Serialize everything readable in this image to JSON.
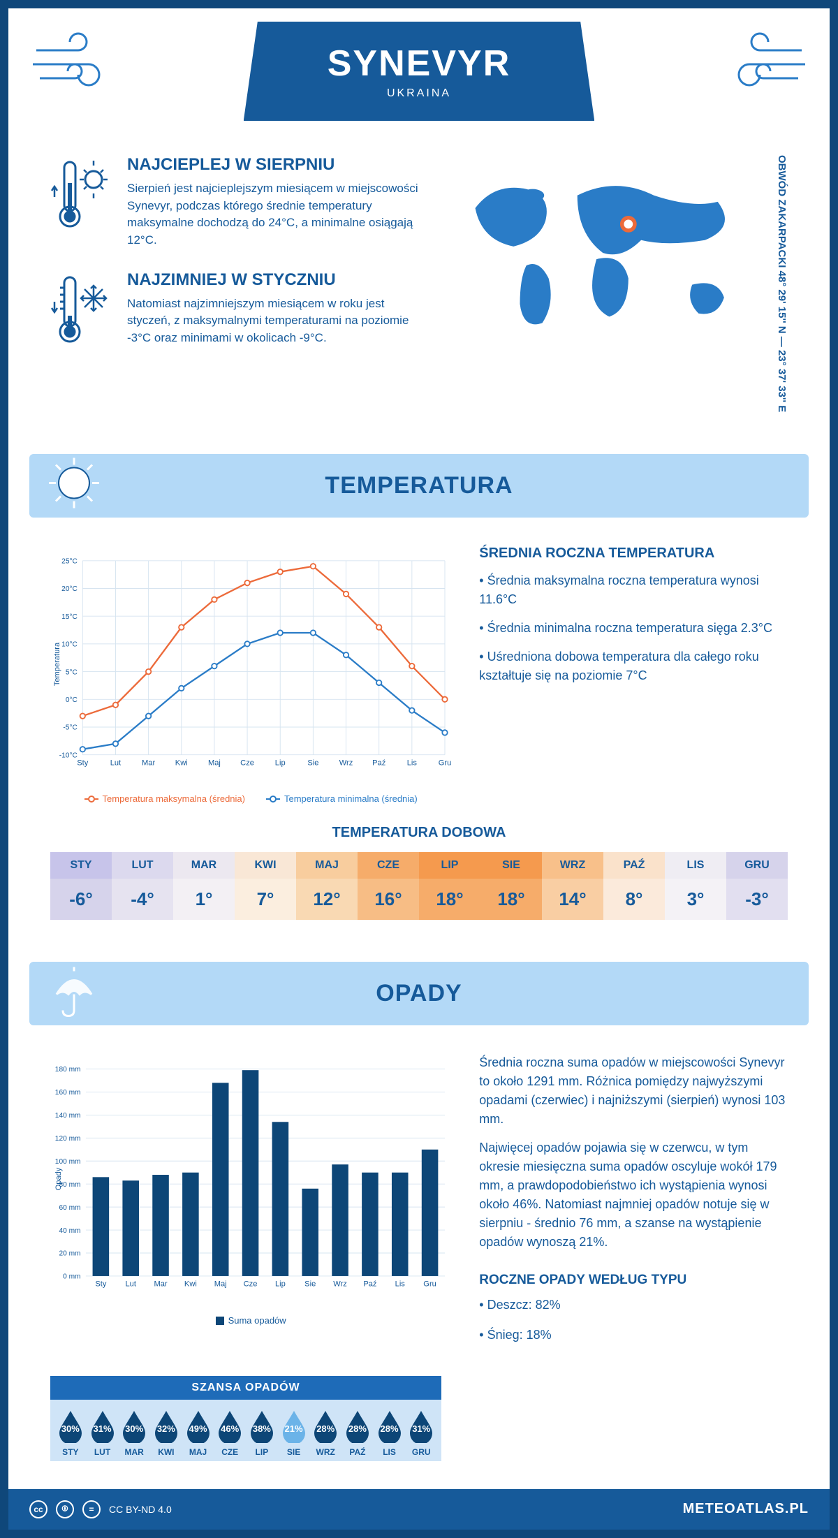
{
  "colors": {
    "primary": "#165a9a",
    "lightBlue": "#b3d9f7",
    "chartBlue": "#2a7cc7",
    "chartOrange": "#ec6a3a",
    "gridColor": "#d6e4f0",
    "dropDark": "#0d4677",
    "dropLight": "#6bb3e8"
  },
  "header": {
    "title": "SYNEVYR",
    "country": "UKRAINA"
  },
  "coords": "OBWÓD ZAKARPACKI     48° 29' 15'' N — 23° 37' 33'' E",
  "warm": {
    "title": "NAJCIEPLEJ W SIERPNIU",
    "text": "Sierpień jest najcieplejszym miesiącem w miejscowości Synevyr, podczas którego średnie temperatury maksymalne dochodzą do 24°C, a minimalne osiągają 12°C."
  },
  "cold": {
    "title": "NAJZIMNIEJ W STYCZNIU",
    "text": "Natomiast najzimniejszym miesiącem w roku jest styczeń, z maksymalnymi temperaturami na poziomie -3°C oraz minimami w okolicach -9°C."
  },
  "tempSection": {
    "heading": "TEMPERATURA",
    "chart": {
      "months": [
        "Sty",
        "Lut",
        "Mar",
        "Kwi",
        "Maj",
        "Cze",
        "Lip",
        "Sie",
        "Wrz",
        "Paź",
        "Lis",
        "Gru"
      ],
      "maxSeries": [
        -3,
        -1,
        5,
        13,
        18,
        21,
        23,
        24,
        19,
        13,
        6,
        0
      ],
      "minSeries": [
        -9,
        -8,
        -3,
        2,
        6,
        10,
        12,
        12,
        8,
        3,
        -2,
        -6
      ],
      "ylabel": "Temperatura",
      "ymin": -10,
      "ymax": 25,
      "ystep": 5,
      "maxColor": "#ec6a3a",
      "minColor": "#2a7cc7",
      "maxLegend": "Temperatura maksymalna (średnia)",
      "minLegend": "Temperatura minimalna (średnia)"
    },
    "sidebar": {
      "title": "ŚREDNIA ROCZNA TEMPERATURA",
      "items": [
        "• Średnia maksymalna roczna temperatura wynosi 11.6°C",
        "• Średnia minimalna roczna temperatura sięga 2.3°C",
        "• Uśredniona dobowa temperatura dla całego roku kształtuje się na poziomie 7°C"
      ]
    }
  },
  "dailyTemp": {
    "title": "TEMPERATURA DOBOWA",
    "months": [
      "STY",
      "LUT",
      "MAR",
      "KWI",
      "MAJ",
      "CZE",
      "LIP",
      "SIE",
      "WRZ",
      "PAŹ",
      "LIS",
      "GRU"
    ],
    "values": [
      "-6°",
      "-4°",
      "1°",
      "7°",
      "12°",
      "16°",
      "18°",
      "18°",
      "14°",
      "8°",
      "3°",
      "-3°"
    ],
    "headerColors": [
      "#c7c4ea",
      "#dcd9ee",
      "#ece8f0",
      "#f9e7d6",
      "#f8cd9e",
      "#f6ac6a",
      "#f59a4e",
      "#f59a4e",
      "#f8c08a",
      "#fae2cb",
      "#efedf3",
      "#d6d3eb"
    ],
    "valueColors": [
      "#d6d3eb",
      "#e6e3f0",
      "#f3f0f4",
      "#fbeedf",
      "#f9d9b3",
      "#f7bd85",
      "#f6ac6a",
      "#f6ac6a",
      "#f9cea3",
      "#fbeadb",
      "#f4f2f6",
      "#e2dff0"
    ]
  },
  "precipSection": {
    "heading": "OPADY",
    "chart": {
      "months": [
        "Sty",
        "Lut",
        "Mar",
        "Kwi",
        "Maj",
        "Cze",
        "Lip",
        "Sie",
        "Wrz",
        "Paź",
        "Lis",
        "Gru"
      ],
      "values": [
        86,
        83,
        88,
        90,
        168,
        179,
        134,
        76,
        97,
        90,
        90,
        110
      ],
      "ylabel": "Opady",
      "ymax": 180,
      "ystep": 20,
      "barColor": "#0d4677",
      "legend": "Suma opadów"
    },
    "text1": "Średnia roczna suma opadów w miejscowości Synevyr to około 1291 mm. Różnica pomiędzy najwyższymi opadami (czerwiec) i najniższymi (sierpień) wynosi 103 mm.",
    "text2": "Najwięcej opadów pojawia się w czerwcu, w tym okresie miesięczna suma opadów oscyluje wokół 179 mm, a prawdopodobieństwo ich wystąpienia wynosi około 46%. Natomiast najmniej opadów notuje się w sierpniu - średnio 76 mm, a szanse na wystąpienie opadów wynoszą 21%.",
    "chance": {
      "title": "SZANSA OPADÓW",
      "months": [
        "STY",
        "LUT",
        "MAR",
        "KWI",
        "MAJ",
        "CZE",
        "LIP",
        "SIE",
        "WRZ",
        "PAŹ",
        "LIS",
        "GRU"
      ],
      "values": [
        "30%",
        "31%",
        "30%",
        "32%",
        "49%",
        "46%",
        "38%",
        "21%",
        "28%",
        "28%",
        "28%",
        "31%"
      ],
      "lightIndex": 7
    },
    "types": {
      "title": "ROCZNE OPADY WEDŁUG TYPU",
      "rain": "• Deszcz: 82%",
      "snow": "• Śnieg: 18%"
    }
  },
  "footer": {
    "license": "CC BY-ND 4.0",
    "site": "METEOATLAS.PL"
  }
}
